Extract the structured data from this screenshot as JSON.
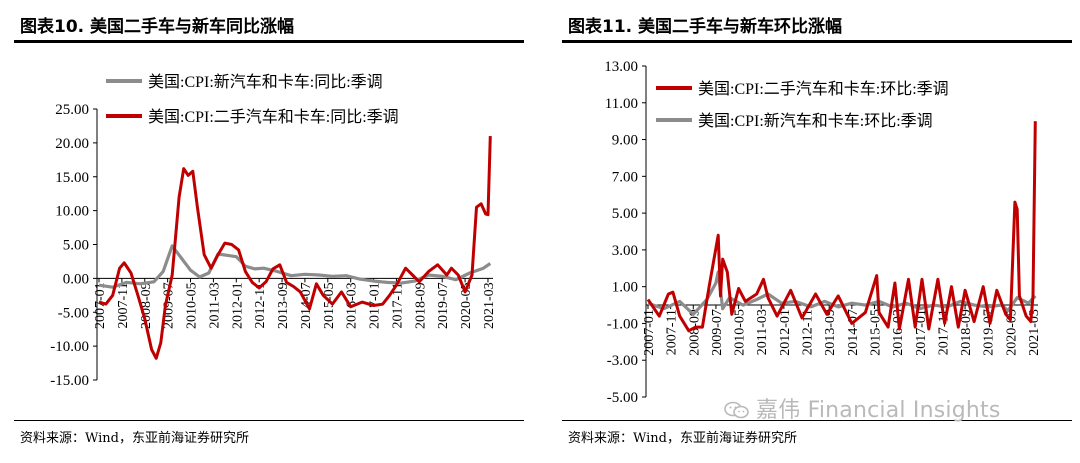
{
  "panels": [
    {
      "title": "图表10.  美国二手车与新车同比涨幅",
      "source": "资料来源：Wind，东亚前海证券研究所",
      "colors": {
        "used": "#c00000",
        "new": "#8c8c8c"
      }
    },
    {
      "title": "图表11.  美国二手车与新车环比涨幅",
      "source": "资料来源：Wind，东亚前海证券研究所",
      "colors": {
        "used": "#c00000",
        "new": "#8c8c8c"
      }
    }
  ],
  "watermark": {
    "text": "嘉伟 Financial Insights",
    "icon": "wechat-icon"
  },
  "chart_data": [
    {
      "type": "line",
      "title": "",
      "xlabel": "",
      "ylabel": "",
      "ylim": [
        -15,
        25
      ],
      "yticks": [
        "25.00",
        "20.00",
        "15.00",
        "10.00",
        "5.00",
        "0.00",
        "-5.00",
        "-10.00",
        "-15.00"
      ],
      "xticks": [
        "2007-01",
        "2007-11",
        "2008-09",
        "2009-07",
        "2010-05",
        "2011-03",
        "2012-01",
        "2012-11",
        "2013-09",
        "2014-07",
        "2015-05",
        "2016-03",
        "2017-01",
        "2017-11",
        "2018-09",
        "2019-07",
        "2020-05",
        "2021-03"
      ],
      "grid": false,
      "legend": "top-left",
      "series": [
        {
          "name": "美国:CPI:新汽车和卡车:同比:季调",
          "color": "#8c8c8c",
          "points": [
            [
              "2007-01",
              -1.0
            ],
            [
              "2007-07",
              -1.3
            ],
            [
              "2008-01",
              -0.6
            ],
            [
              "2008-07",
              -0.8
            ],
            [
              "2009-01",
              -0.5
            ],
            [
              "2009-05",
              1.0
            ],
            [
              "2009-09",
              4.8
            ],
            [
              "2010-01",
              3.0
            ],
            [
              "2010-05",
              1.2
            ],
            [
              "2010-09",
              0.2
            ],
            [
              "2011-01",
              0.8
            ],
            [
              "2011-05",
              3.6
            ],
            [
              "2011-09",
              3.4
            ],
            [
              "2012-01",
              3.2
            ],
            [
              "2012-05",
              1.8
            ],
            [
              "2012-09",
              1.4
            ],
            [
              "2013-01",
              1.5
            ],
            [
              "2013-06",
              1.1
            ],
            [
              "2014-01",
              0.4
            ],
            [
              "2014-07",
              0.6
            ],
            [
              "2015-01",
              0.5
            ],
            [
              "2015-07",
              0.3
            ],
            [
              "2016-01",
              0.4
            ],
            [
              "2016-07",
              -0.1
            ],
            [
              "2017-01",
              -0.4
            ],
            [
              "2017-07",
              -0.6
            ],
            [
              "2018-01",
              -0.7
            ],
            [
              "2018-07",
              -0.4
            ],
            [
              "2019-01",
              0.5
            ],
            [
              "2019-07",
              0.3
            ],
            [
              "2020-01",
              -0.2
            ],
            [
              "2020-07",
              0.8
            ],
            [
              "2021-01",
              1.5
            ],
            [
              "2021-04",
              2.2
            ]
          ]
        },
        {
          "name": "美国:CPI:二手汽车和卡车:同比:季调",
          "color": "#c00000",
          "points": [
            [
              "2007-01",
              -3.5
            ],
            [
              "2007-04",
              -3.8
            ],
            [
              "2007-07",
              -2.5
            ],
            [
              "2007-10",
              1.5
            ],
            [
              "2007-12",
              2.3
            ],
            [
              "2008-03",
              0.8
            ],
            [
              "2008-06",
              -2.5
            ],
            [
              "2008-09",
              -6.0
            ],
            [
              "2008-12",
              -10.5
            ],
            [
              "2009-02",
              -11.8
            ],
            [
              "2009-04",
              -9.5
            ],
            [
              "2009-06",
              -4.0
            ],
            [
              "2009-09",
              0.5
            ],
            [
              "2009-12",
              12.0
            ],
            [
              "2010-02",
              16.2
            ],
            [
              "2010-04",
              15.2
            ],
            [
              "2010-06",
              15.8
            ],
            [
              "2010-08",
              10.5
            ],
            [
              "2010-11",
              3.5
            ],
            [
              "2011-02",
              1.5
            ],
            [
              "2011-05",
              3.5
            ],
            [
              "2011-08",
              5.2
            ],
            [
              "2011-11",
              5.0
            ],
            [
              "2012-02",
              4.2
            ],
            [
              "2012-05",
              1.0
            ],
            [
              "2012-08",
              -0.6
            ],
            [
              "2012-11",
              -1.4
            ],
            [
              "2013-02",
              -0.5
            ],
            [
              "2013-05",
              1.4
            ],
            [
              "2013-08",
              2.0
            ],
            [
              "2013-11",
              -0.6
            ],
            [
              "2014-02",
              -1.2
            ],
            [
              "2014-05",
              -2.0
            ],
            [
              "2014-09",
              -4.5
            ],
            [
              "2014-12",
              -0.8
            ],
            [
              "2015-03",
              -2.5
            ],
            [
              "2015-07",
              -3.8
            ],
            [
              "2015-11",
              -2.0
            ],
            [
              "2016-03",
              -4.2
            ],
            [
              "2016-08",
              -3.5
            ],
            [
              "2017-01",
              -4.0
            ],
            [
              "2017-05",
              -3.8
            ],
            [
              "2017-08",
              -2.5
            ],
            [
              "2017-11",
              -1.0
            ],
            [
              "2018-03",
              1.5
            ],
            [
              "2018-06",
              0.5
            ],
            [
              "2018-09",
              -0.5
            ],
            [
              "2019-01",
              1.0
            ],
            [
              "2019-05",
              2.0
            ],
            [
              "2019-09",
              0.5
            ],
            [
              "2019-11",
              1.5
            ],
            [
              "2020-02",
              0.5
            ],
            [
              "2020-05",
              -2.0
            ],
            [
              "2020-08",
              0.5
            ],
            [
              "2020-10",
              10.5
            ],
            [
              "2020-12",
              11.0
            ],
            [
              "2021-02",
              9.5
            ],
            [
              "2021-03",
              9.4
            ],
            [
              "2021-04",
              21.0
            ]
          ]
        }
      ]
    },
    {
      "type": "line",
      "title": "",
      "xlabel": "",
      "ylabel": "",
      "ylim": [
        -5,
        13
      ],
      "yticks": [
        "13.00",
        "11.00",
        "9.00",
        "7.00",
        "5.00",
        "3.00",
        "1.00",
        "-1.00",
        "-3.00",
        "-5.00"
      ],
      "xticks": [
        "2007-01",
        "2007-11",
        "2008-09",
        "2009-07",
        "2010-05",
        "2011-03",
        "2012-01",
        "2012-11",
        "2013-09",
        "2014-07",
        "2015-05",
        "2016-03",
        "2017-01",
        "2017-11",
        "2018-09",
        "2019-07",
        "2020-05",
        "2021-03"
      ],
      "grid": false,
      "legend": "top-left",
      "series": [
        {
          "name": "美国:CPI:二手汽车和卡车:环比:季调",
          "color": "#c00000",
          "points": [
            [
              "2007-01",
              0.3
            ],
            [
              "2007-06",
              -0.6
            ],
            [
              "2007-10",
              0.6
            ],
            [
              "2007-12",
              0.7
            ],
            [
              "2008-03",
              -0.6
            ],
            [
              "2008-07",
              -1.4
            ],
            [
              "2008-10",
              -1.2
            ],
            [
              "2009-01",
              -1.2
            ],
            [
              "2009-04",
              1.0
            ],
            [
              "2009-08",
              3.8
            ],
            [
              "2009-09",
              0.5
            ],
            [
              "2009-10",
              2.5
            ],
            [
              "2009-12",
              1.8
            ],
            [
              "2010-02",
              -0.5
            ],
            [
              "2010-05",
              0.9
            ],
            [
              "2010-08",
              0.2
            ],
            [
              "2011-01",
              0.6
            ],
            [
              "2011-04",
              1.4
            ],
            [
              "2011-06",
              0.4
            ],
            [
              "2011-10",
              -0.6
            ],
            [
              "2012-04",
              0.8
            ],
            [
              "2012-09",
              -0.7
            ],
            [
              "2013-03",
              0.6
            ],
            [
              "2013-08",
              -0.5
            ],
            [
              "2014-01",
              0.5
            ],
            [
              "2014-07",
              -1.0
            ],
            [
              "2015-01",
              -0.4
            ],
            [
              "2015-06",
              1.6
            ],
            [
              "2015-07",
              -0.4
            ],
            [
              "2015-11",
              -1.2
            ],
            [
              "2016-02",
              1.2
            ],
            [
              "2016-04",
              -1.3
            ],
            [
              "2016-08",
              1.4
            ],
            [
              "2016-11",
              -1.2
            ],
            [
              "2017-02",
              1.4
            ],
            [
              "2017-05",
              -1.3
            ],
            [
              "2017-09",
              1.4
            ],
            [
              "2017-12",
              -1.0
            ],
            [
              "2018-03",
              1.0
            ],
            [
              "2018-06",
              -1.2
            ],
            [
              "2018-09",
              0.8
            ],
            [
              "2019-01",
              -0.9
            ],
            [
              "2019-05",
              1.0
            ],
            [
              "2019-08",
              -1.0
            ],
            [
              "2019-11",
              0.8
            ],
            [
              "2020-03",
              -0.5
            ],
            [
              "2020-05",
              -0.8
            ],
            [
              "2020-07",
              5.6
            ],
            [
              "2020-08",
              5.2
            ],
            [
              "2020-09",
              0.5
            ],
            [
              "2020-12",
              -0.6
            ],
            [
              "2021-02",
              -0.9
            ],
            [
              "2021-03",
              0.5
            ],
            [
              "2021-04",
              10.0
            ]
          ]
        },
        {
          "name": "美国:CPI:新汽车和卡车:环比:季调",
          "color": "#8c8c8c",
          "points": [
            [
              "2007-01",
              0.1
            ],
            [
              "2007-08",
              -0.2
            ],
            [
              "2008-03",
              0.2
            ],
            [
              "2008-09",
              -0.5
            ],
            [
              "2009-03",
              0.3
            ],
            [
              "2009-07",
              1.2
            ],
            [
              "2009-08",
              1.8
            ],
            [
              "2009-10",
              -0.2
            ],
            [
              "2010-01",
              0.4
            ],
            [
              "2010-07",
              0.0
            ],
            [
              "2011-01",
              0.3
            ],
            [
              "2011-06",
              0.6
            ],
            [
              "2011-12",
              0.1
            ],
            [
              "2012-06",
              0.2
            ],
            [
              "2013-01",
              -0.1
            ],
            [
              "2013-07",
              0.2
            ],
            [
              "2014-01",
              -0.1
            ],
            [
              "2014-07",
              0.1
            ],
            [
              "2015-01",
              0.0
            ],
            [
              "2015-07",
              0.2
            ],
            [
              "2016-01",
              -0.1
            ],
            [
              "2016-07",
              0.1
            ],
            [
              "2017-01",
              -0.2
            ],
            [
              "2017-07",
              0.0
            ],
            [
              "2018-01",
              -0.1
            ],
            [
              "2018-07",
              0.2
            ],
            [
              "2019-01",
              0.0
            ],
            [
              "2019-07",
              -0.1
            ],
            [
              "2020-01",
              0.0
            ],
            [
              "2020-04",
              -0.3
            ],
            [
              "2020-08",
              0.4
            ],
            [
              "2021-01",
              0.1
            ],
            [
              "2021-04",
              0.5
            ]
          ]
        }
      ]
    }
  ]
}
